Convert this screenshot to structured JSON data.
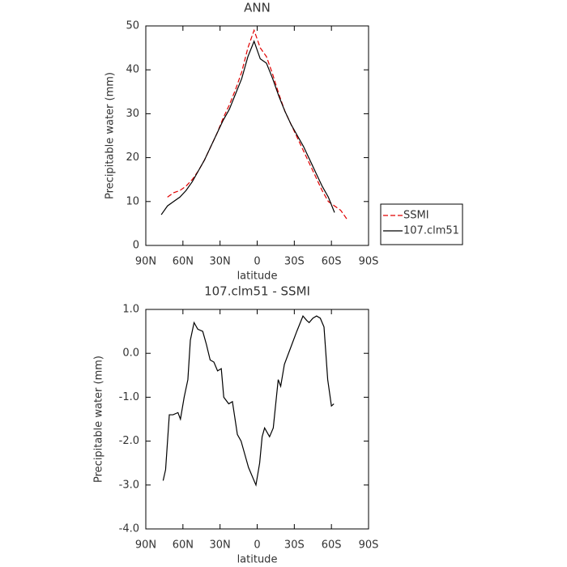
{
  "chart_data": [
    {
      "type": "line",
      "title": "ANN",
      "xlabel": "latitude",
      "ylabel": "Precipitable water (mm)",
      "x": [
        77.5,
        72.5,
        67.5,
        62.5,
        57.5,
        52.5,
        47.5,
        42.5,
        37.5,
        32.5,
        27.5,
        22.5,
        17.5,
        12.5,
        7.5,
        2.5,
        -2.5,
        -7.5,
        -12.5,
        -17.5,
        -22.5,
        -27.5,
        -32.5,
        -37.5,
        -42.5,
        -47.5,
        -52.5,
        -57.5,
        -62.5,
        -67.5,
        -72.5
      ],
      "series": [
        {
          "name": "SSMI",
          "color": "#e00000",
          "style": "dashed",
          "values": [
            null,
            11,
            12,
            12.5,
            13.5,
            15,
            17,
            19.5,
            22.5,
            25.5,
            29,
            32,
            35.5,
            39.5,
            45,
            49,
            45,
            43,
            39,
            34.5,
            30.5,
            27.5,
            24.5,
            21.5,
            18.5,
            15.5,
            12.5,
            10,
            9,
            8,
            6
          ]
        },
        {
          "name": "107.clm51",
          "color": "#000000",
          "style": "solid",
          "values": [
            7,
            9,
            10,
            11,
            12.5,
            14.5,
            17,
            19.5,
            22.5,
            25.5,
            28.5,
            31,
            34.5,
            38,
            43,
            46.5,
            42.5,
            41.5,
            38,
            34,
            30.5,
            27.5,
            25,
            22.5,
            19.5,
            16.5,
            13.5,
            11,
            7.5,
            null,
            null
          ]
        }
      ],
      "xlim": [
        90,
        -90
      ],
      "xticks": [
        {
          "value": 90,
          "label": "90N"
        },
        {
          "value": 60,
          "label": "60N"
        },
        {
          "value": 30,
          "label": "30N"
        },
        0,
        {
          "value": -30,
          "label": "30S"
        },
        {
          "value": -60,
          "label": "60S"
        },
        {
          "value": -90,
          "label": "90S"
        }
      ],
      "ylim": [
        0,
        50
      ],
      "yticks": [
        0,
        10,
        20,
        30,
        40,
        50
      ],
      "legend": "right"
    },
    {
      "type": "line",
      "title": "107.clm51 - SSMI",
      "xlabel": "latitude",
      "ylabel": "Precipitable water (mm)",
      "x": [
        76,
        74,
        71,
        68,
        64,
        62,
        59,
        56,
        54,
        51,
        48,
        44,
        41,
        38,
        35,
        32,
        29,
        27,
        23,
        20,
        16,
        13,
        10,
        7,
        1,
        -2,
        -4,
        -6,
        -10,
        -13,
        -17,
        -19,
        -22,
        -28,
        -32,
        -37,
        -40,
        -42,
        -45,
        -48,
        -51,
        -54,
        -57,
        -60,
        -62
      ],
      "series": [
        {
          "name": "107.clm51",
          "color": "#000000",
          "style": "solid",
          "values": [
            -2.9,
            -2.65,
            -1.4,
            -1.4,
            -1.35,
            -1.5,
            -1.0,
            -0.6,
            0.3,
            0.7,
            0.55,
            0.5,
            0.2,
            -0.15,
            -0.2,
            -0.4,
            -0.35,
            -1.0,
            -1.15,
            -1.1,
            -1.85,
            -2.0,
            -2.3,
            -2.6,
            -3.0,
            -2.5,
            -1.9,
            -1.7,
            -1.9,
            -1.7,
            -0.6,
            -0.75,
            -0.25,
            0.2,
            0.5,
            0.85,
            0.75,
            0.7,
            0.8,
            0.85,
            0.8,
            0.6,
            -0.6,
            -1.2,
            -1.15
          ]
        }
      ],
      "xlim": [
        90,
        -90
      ],
      "xticks": [
        {
          "value": 90,
          "label": "90N"
        },
        {
          "value": 60,
          "label": "60N"
        },
        {
          "value": 30,
          "label": "30N"
        },
        0,
        {
          "value": -30,
          "label": "30S"
        },
        {
          "value": -60,
          "label": "60S"
        },
        {
          "value": -90,
          "label": "90S"
        }
      ],
      "ylim": [
        -4,
        1
      ],
      "yticks": [
        {
          "value": 1,
          "label": "1.0"
        },
        {
          "value": 0,
          "label": "0.0"
        },
        {
          "value": -1,
          "label": "-1.0"
        },
        {
          "value": -2,
          "label": "-2.0"
        },
        {
          "value": -3,
          "label": "-3.0"
        },
        {
          "value": -4,
          "label": "-4.0"
        }
      ]
    }
  ]
}
